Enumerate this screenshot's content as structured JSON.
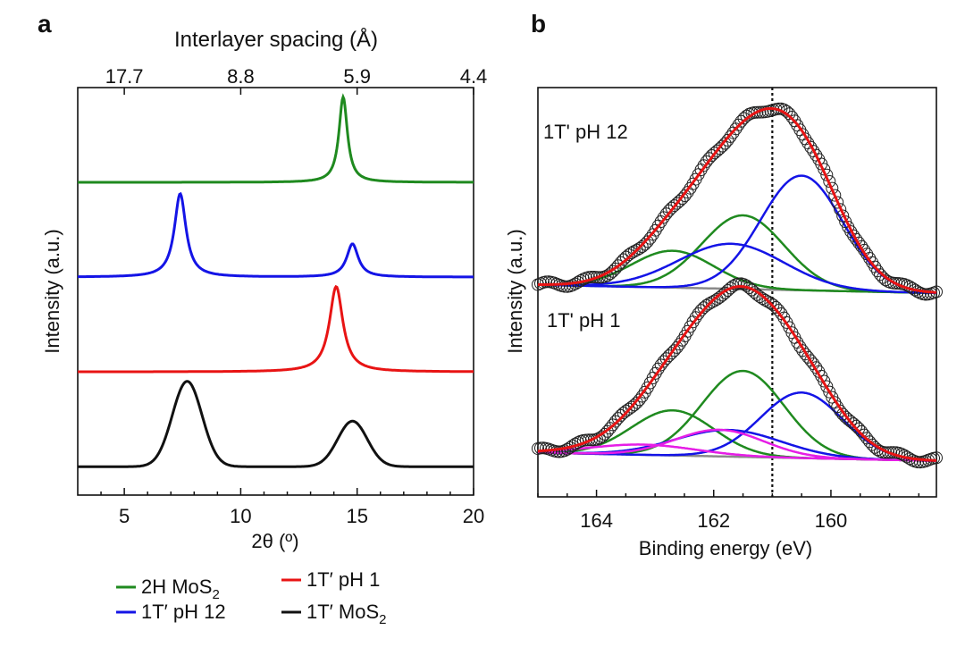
{
  "colors": {
    "green": "#1f8a1f",
    "blue": "#1414e6",
    "red": "#e81414",
    "black": "#111111",
    "magenta": "#e61ee6",
    "gray": "#8a8a8a"
  },
  "chart_data": [
    {
      "panel": "a",
      "type": "line",
      "title": "Interlayer spacing (Å)",
      "xlabel": "2θ (º)",
      "ylabel": "Intensity (a.u.)",
      "xlim": [
        3,
        20
      ],
      "xticks": [
        "5",
        "10",
        "15",
        "20"
      ],
      "top_ticks": [
        {
          "x": 5.0,
          "label": "17.7"
        },
        {
          "x": 10.0,
          "label": "8.8"
        },
        {
          "x": 15.0,
          "label": "5.9"
        },
        {
          "x": 20.0,
          "label": "4.4"
        }
      ],
      "series": [
        {
          "name": "2H MoS2",
          "color": "green",
          "offset": 3.3,
          "peaks": [
            {
              "x": 14.4,
              "h": 0.9,
              "w": 0.22,
              "shape": "lorentz"
            }
          ]
        },
        {
          "name": "1T′ pH 12",
          "color": "blue",
          "offset": 2.3,
          "peaks": [
            {
              "x": 7.4,
              "h": 0.88,
              "w": 0.3,
              "shape": "lorentz"
            },
            {
              "x": 14.8,
              "h": 0.35,
              "w": 0.3,
              "shape": "lorentz"
            }
          ]
        },
        {
          "name": "1T′ pH 1",
          "color": "red",
          "offset": 1.3,
          "peaks": [
            {
              "x": 14.1,
              "h": 0.9,
              "w": 0.35,
              "shape": "lorentz"
            }
          ]
        },
        {
          "name": "1T′ MoS2",
          "color": "black",
          "offset": 0.3,
          "peaks": [
            {
              "x": 7.7,
              "h": 0.9,
              "w": 0.75,
              "shape": "gauss"
            },
            {
              "x": 14.8,
              "h": 0.48,
              "w": 0.75,
              "shape": "gauss"
            }
          ]
        }
      ],
      "legend": [
        {
          "text": "2H MoS",
          "sub": "2",
          "color": "green"
        },
        {
          "text": "1T′ pH 1",
          "sub": "",
          "color": "red"
        },
        {
          "text": "1T′ pH 12",
          "sub": "",
          "color": "blue"
        },
        {
          "text": "1T′ MoS",
          "sub": "2",
          "color": "black"
        }
      ]
    },
    {
      "panel": "b",
      "type": "line",
      "xlabel": "Binding energy (eV)",
      "ylabel": "Intensity (a.u.)",
      "xlim": [
        165.0,
        158.2
      ],
      "xticks": [
        164,
        162,
        160
      ],
      "dotted_line": 161.0,
      "ylim": [
        0,
        10
      ],
      "spectra": [
        {
          "label": "1T' pH 12",
          "baseline": 5.0,
          "components": [
            {
              "center": 162.7,
              "h": 0.9,
              "w": 0.7,
              "color": "green"
            },
            {
              "center": 161.5,
              "h": 1.8,
              "w": 0.7,
              "color": "green"
            },
            {
              "center": 161.7,
              "h": 1.1,
              "w": 0.9,
              "color": "blue"
            },
            {
              "center": 160.5,
              "h": 2.8,
              "w": 0.7,
              "color": "blue"
            }
          ],
          "envelope_color": "red"
        },
        {
          "label": "1T' pH 1",
          "baseline": 0.9,
          "components": [
            {
              "center": 162.7,
              "h": 1.1,
              "w": 0.7,
              "color": "green"
            },
            {
              "center": 161.5,
              "h": 2.1,
              "w": 0.7,
              "color": "green"
            },
            {
              "center": 161.75,
              "h": 0.65,
              "w": 0.9,
              "color": "blue"
            },
            {
              "center": 160.5,
              "h": 1.6,
              "w": 0.7,
              "color": "blue"
            },
            {
              "center": 161.9,
              "h": 0.65,
              "w": 0.75,
              "color": "magenta"
            },
            {
              "center": 163.2,
              "h": 0.25,
              "w": 0.9,
              "color": "magenta"
            }
          ],
          "envelope_color": "red"
        }
      ]
    }
  ]
}
